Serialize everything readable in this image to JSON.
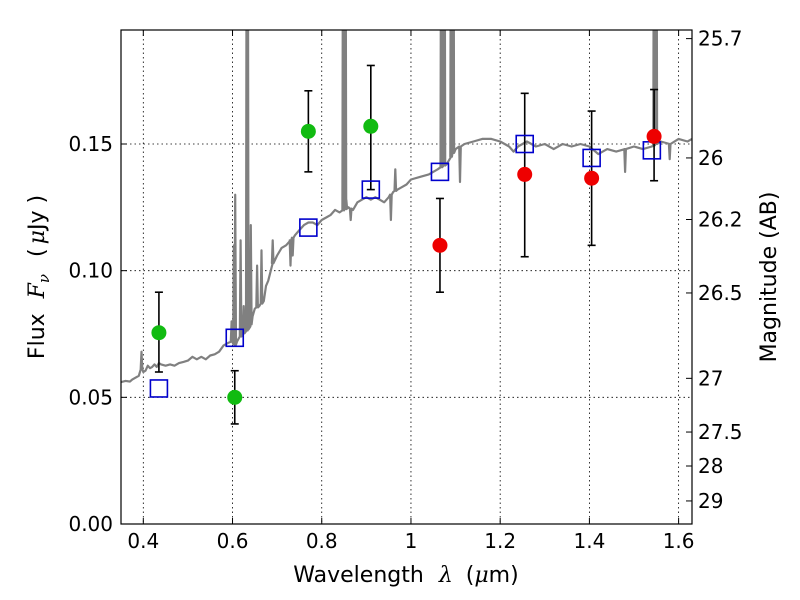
{
  "chart_data": {
    "type": "scatter",
    "title": "",
    "xlabel_text": "Wavelength",
    "xlabel_symbol": "λ",
    "xlabel_unit_open": "(",
    "xlabel_unit_symbol": "μ",
    "xlabel_unit_rest": "m)",
    "ylabel_text": "Flux",
    "ylabel_symbol": "F",
    "ylabel_subscript": "ν",
    "ylabel_unit_open": "(",
    "ylabel_unit_symbol": "μ",
    "ylabel_unit_rest": "Jy )",
    "ylabel_right": "Magnitude (AB)",
    "xlim": [
      0.35,
      1.63
    ],
    "ylim": [
      0.0,
      0.195
    ],
    "x_ticks": [
      0.4,
      0.6,
      0.8,
      1.0,
      1.2,
      1.4,
      1.6
    ],
    "x_tick_labels": [
      "0.4",
      "0.6",
      "0.8",
      "1",
      "1.2",
      "1.4",
      "1.6"
    ],
    "y_ticks": [
      0.0,
      0.05,
      0.1,
      0.15
    ],
    "y_tick_labels": [
      "0.00",
      "0.05",
      "0.10",
      "0.15"
    ],
    "right_ticks": [
      {
        "flux": 0.1916,
        "label": "25.7"
      },
      {
        "flux": 0.1445,
        "label": "26"
      },
      {
        "flux": 0.1202,
        "label": "26.2"
      },
      {
        "flux": 0.0912,
        "label": "26.5"
      },
      {
        "flux": 0.0575,
        "label": "27"
      },
      {
        "flux": 0.0363,
        "label": "27.5"
      },
      {
        "flux": 0.0229,
        "label": "28"
      },
      {
        "flux": 0.0091,
        "label": "29"
      }
    ],
    "grid": true,
    "colors": {
      "model_line": "#808080",
      "model_points": "#0000cc",
      "green_points": "#11bb11",
      "red_points": "#ee0000",
      "error_bars": "#000000"
    },
    "model_spectrum": [
      [
        0.35,
        0.056
      ],
      [
        0.36,
        0.0565
      ],
      [
        0.37,
        0.0562
      ],
      [
        0.375,
        0.057
      ],
      [
        0.38,
        0.0575
      ],
      [
        0.39,
        0.0585
      ],
      [
        0.395,
        0.0615
      ],
      [
        0.4,
        0.06
      ],
      [
        0.405,
        0.0605
      ],
      [
        0.41,
        0.0625
      ],
      [
        0.415,
        0.0615
      ],
      [
        0.42,
        0.062
      ],
      [
        0.425,
        0.063
      ],
      [
        0.43,
        0.062
      ],
      [
        0.435,
        0.0635
      ],
      [
        0.44,
        0.063
      ],
      [
        0.45,
        0.0625
      ],
      [
        0.46,
        0.063
      ],
      [
        0.47,
        0.0625
      ],
      [
        0.48,
        0.0635
      ],
      [
        0.49,
        0.064
      ],
      [
        0.5,
        0.0645
      ],
      [
        0.51,
        0.066
      ],
      [
        0.52,
        0.065
      ],
      [
        0.53,
        0.066
      ],
      [
        0.54,
        0.065
      ],
      [
        0.55,
        0.0665
      ],
      [
        0.56,
        0.067
      ],
      [
        0.57,
        0.068
      ],
      [
        0.58,
        0.0705
      ],
      [
        0.59,
        0.0715
      ],
      [
        0.6,
        0.072
      ],
      [
        0.605,
        0.0705
      ],
      [
        0.61,
        0.072
      ],
      [
        0.62,
        0.0745
      ],
      [
        0.63,
        0.076
      ],
      [
        0.64,
        0.078
      ],
      [
        0.645,
        0.082
      ],
      [
        0.65,
        0.085
      ],
      [
        0.66,
        0.086
      ],
      [
        0.67,
        0.088
      ],
      [
        0.675,
        0.094
      ],
      [
        0.68,
        0.096
      ],
      [
        0.69,
        0.103
      ],
      [
        0.7,
        0.106
      ],
      [
        0.71,
        0.109
      ],
      [
        0.72,
        0.11
      ],
      [
        0.73,
        0.112
      ],
      [
        0.74,
        0.114
      ],
      [
        0.75,
        0.116
      ],
      [
        0.76,
        0.118
      ],
      [
        0.77,
        0.119
      ],
      [
        0.78,
        0.119
      ],
      [
        0.79,
        0.118
      ],
      [
        0.8,
        0.12
      ],
      [
        0.81,
        0.121
      ],
      [
        0.82,
        0.122
      ],
      [
        0.83,
        0.124
      ],
      [
        0.84,
        0.123
      ],
      [
        0.86,
        0.125
      ],
      [
        0.87,
        0.124
      ],
      [
        0.88,
        0.127
      ],
      [
        0.89,
        0.128
      ],
      [
        0.9,
        0.129
      ],
      [
        0.91,
        0.128
      ],
      [
        0.92,
        0.129
      ],
      [
        0.93,
        0.128
      ],
      [
        0.94,
        0.127
      ],
      [
        0.95,
        0.129
      ],
      [
        0.96,
        0.131
      ],
      [
        0.97,
        0.132
      ],
      [
        0.98,
        0.133
      ],
      [
        0.99,
        0.134
      ],
      [
        1.0,
        0.136
      ],
      [
        1.02,
        0.137
      ],
      [
        1.04,
        0.138
      ],
      [
        1.06,
        0.14
      ],
      [
        1.08,
        0.142
      ],
      [
        1.09,
        0.145
      ],
      [
        1.1,
        0.148
      ],
      [
        1.12,
        0.15
      ],
      [
        1.14,
        0.151
      ],
      [
        1.16,
        0.152
      ],
      [
        1.18,
        0.152
      ],
      [
        1.2,
        0.151
      ],
      [
        1.22,
        0.149
      ],
      [
        1.23,
        0.147
      ],
      [
        1.24,
        0.149
      ],
      [
        1.26,
        0.151
      ],
      [
        1.28,
        0.149
      ],
      [
        1.3,
        0.15
      ],
      [
        1.32,
        0.148
      ],
      [
        1.34,
        0.15
      ],
      [
        1.36,
        0.149
      ],
      [
        1.38,
        0.15
      ],
      [
        1.4,
        0.149
      ],
      [
        1.42,
        0.146
      ],
      [
        1.44,
        0.148
      ],
      [
        1.46,
        0.147
      ],
      [
        1.48,
        0.148
      ],
      [
        1.5,
        0.149
      ],
      [
        1.52,
        0.148
      ],
      [
        1.54,
        0.149
      ],
      [
        1.56,
        0.151
      ],
      [
        1.58,
        0.15
      ],
      [
        1.6,
        0.152
      ],
      [
        1.62,
        0.151
      ],
      [
        1.63,
        0.152
      ]
    ],
    "emission_spikes": [
      [
        0.396,
        0.068
      ],
      [
        0.598,
        0.08
      ],
      [
        0.603,
        0.11
      ],
      [
        0.606,
        0.13
      ],
      [
        0.618,
        0.112
      ],
      [
        0.625,
        0.086
      ],
      [
        0.632,
        0.3
      ],
      [
        0.634,
        0.3
      ],
      [
        0.641,
        0.118
      ],
      [
        0.655,
        0.102
      ],
      [
        0.665,
        0.108
      ],
      [
        0.69,
        0.112
      ],
      [
        0.73,
        0.102
      ],
      [
        0.735,
        0.106
      ],
      [
        0.848,
        0.3
      ],
      [
        0.853,
        0.3
      ],
      [
        0.855,
        0.128
      ],
      [
        0.865,
        0.12
      ],
      [
        0.955,
        0.12
      ],
      [
        0.965,
        0.14
      ],
      [
        1.068,
        0.3
      ],
      [
        1.075,
        0.3
      ],
      [
        1.09,
        0.3
      ],
      [
        1.095,
        0.3
      ],
      [
        1.11,
        0.135
      ],
      [
        1.48,
        0.139
      ],
      [
        1.545,
        0.3
      ],
      [
        1.55,
        0.3
      ],
      [
        1.58,
        0.144
      ]
    ],
    "model_points": [
      {
        "x": 0.435,
        "y": 0.0535
      },
      {
        "x": 0.605,
        "y": 0.0735
      },
      {
        "x": 0.77,
        "y": 0.117
      },
      {
        "x": 0.91,
        "y": 0.132
      },
      {
        "x": 1.065,
        "y": 0.139
      },
      {
        "x": 1.255,
        "y": 0.15
      },
      {
        "x": 1.405,
        "y": 0.1445
      },
      {
        "x": 1.54,
        "y": 0.1475
      }
    ],
    "green_points": [
      {
        "x": 0.435,
        "y": 0.0755,
        "ylow": 0.06,
        "yhigh": 0.0915
      },
      {
        "x": 0.605,
        "y": 0.05,
        "ylow": 0.0395,
        "yhigh": 0.0605
      },
      {
        "x": 0.77,
        "y": 0.155,
        "ylow": 0.139,
        "yhigh": 0.171
      },
      {
        "x": 0.91,
        "y": 0.157,
        "ylow": 0.132,
        "yhigh": 0.181
      }
    ],
    "red_points": [
      {
        "x": 1.065,
        "y": 0.11,
        "ylow": 0.0915,
        "yhigh": 0.1285
      },
      {
        "x": 1.255,
        "y": 0.138,
        "ylow": 0.1055,
        "yhigh": 0.17
      },
      {
        "x": 1.405,
        "y": 0.1365,
        "ylow": 0.11,
        "yhigh": 0.163
      },
      {
        "x": 1.545,
        "y": 0.153,
        "ylow": 0.1355,
        "yhigh": 0.1715
      }
    ]
  }
}
